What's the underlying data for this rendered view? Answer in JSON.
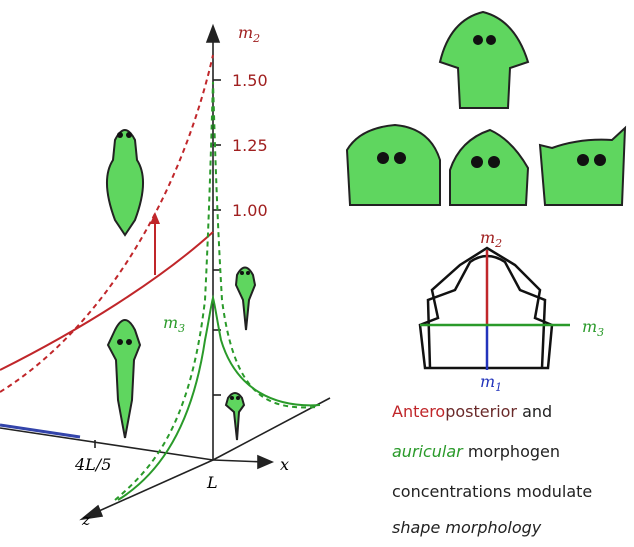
{
  "plot": {
    "axis_m2": {
      "symbol": "m",
      "subscript": "2"
    },
    "ticks": [
      "1.50",
      "1.25",
      "1.00"
    ],
    "label_m3": {
      "symbol": "m",
      "subscript": "3"
    },
    "x_labels": [
      "4L/5",
      "L"
    ],
    "axis_x": "x",
    "axis_z": "z"
  },
  "shape_diagram": {
    "m2": {
      "symbol": "m",
      "subscript": "2"
    },
    "m3": {
      "symbol": "m",
      "subscript": "3"
    },
    "m1": {
      "symbol": "m",
      "subscript": "1"
    }
  },
  "caption": {
    "line1": {
      "red": "Antero",
      "dark": "posterior",
      "rest": " and"
    },
    "line2": {
      "green": "auricular",
      "rest": " morphogen"
    },
    "line3": "concentrations modulate",
    "line4": "shape morphology"
  }
}
